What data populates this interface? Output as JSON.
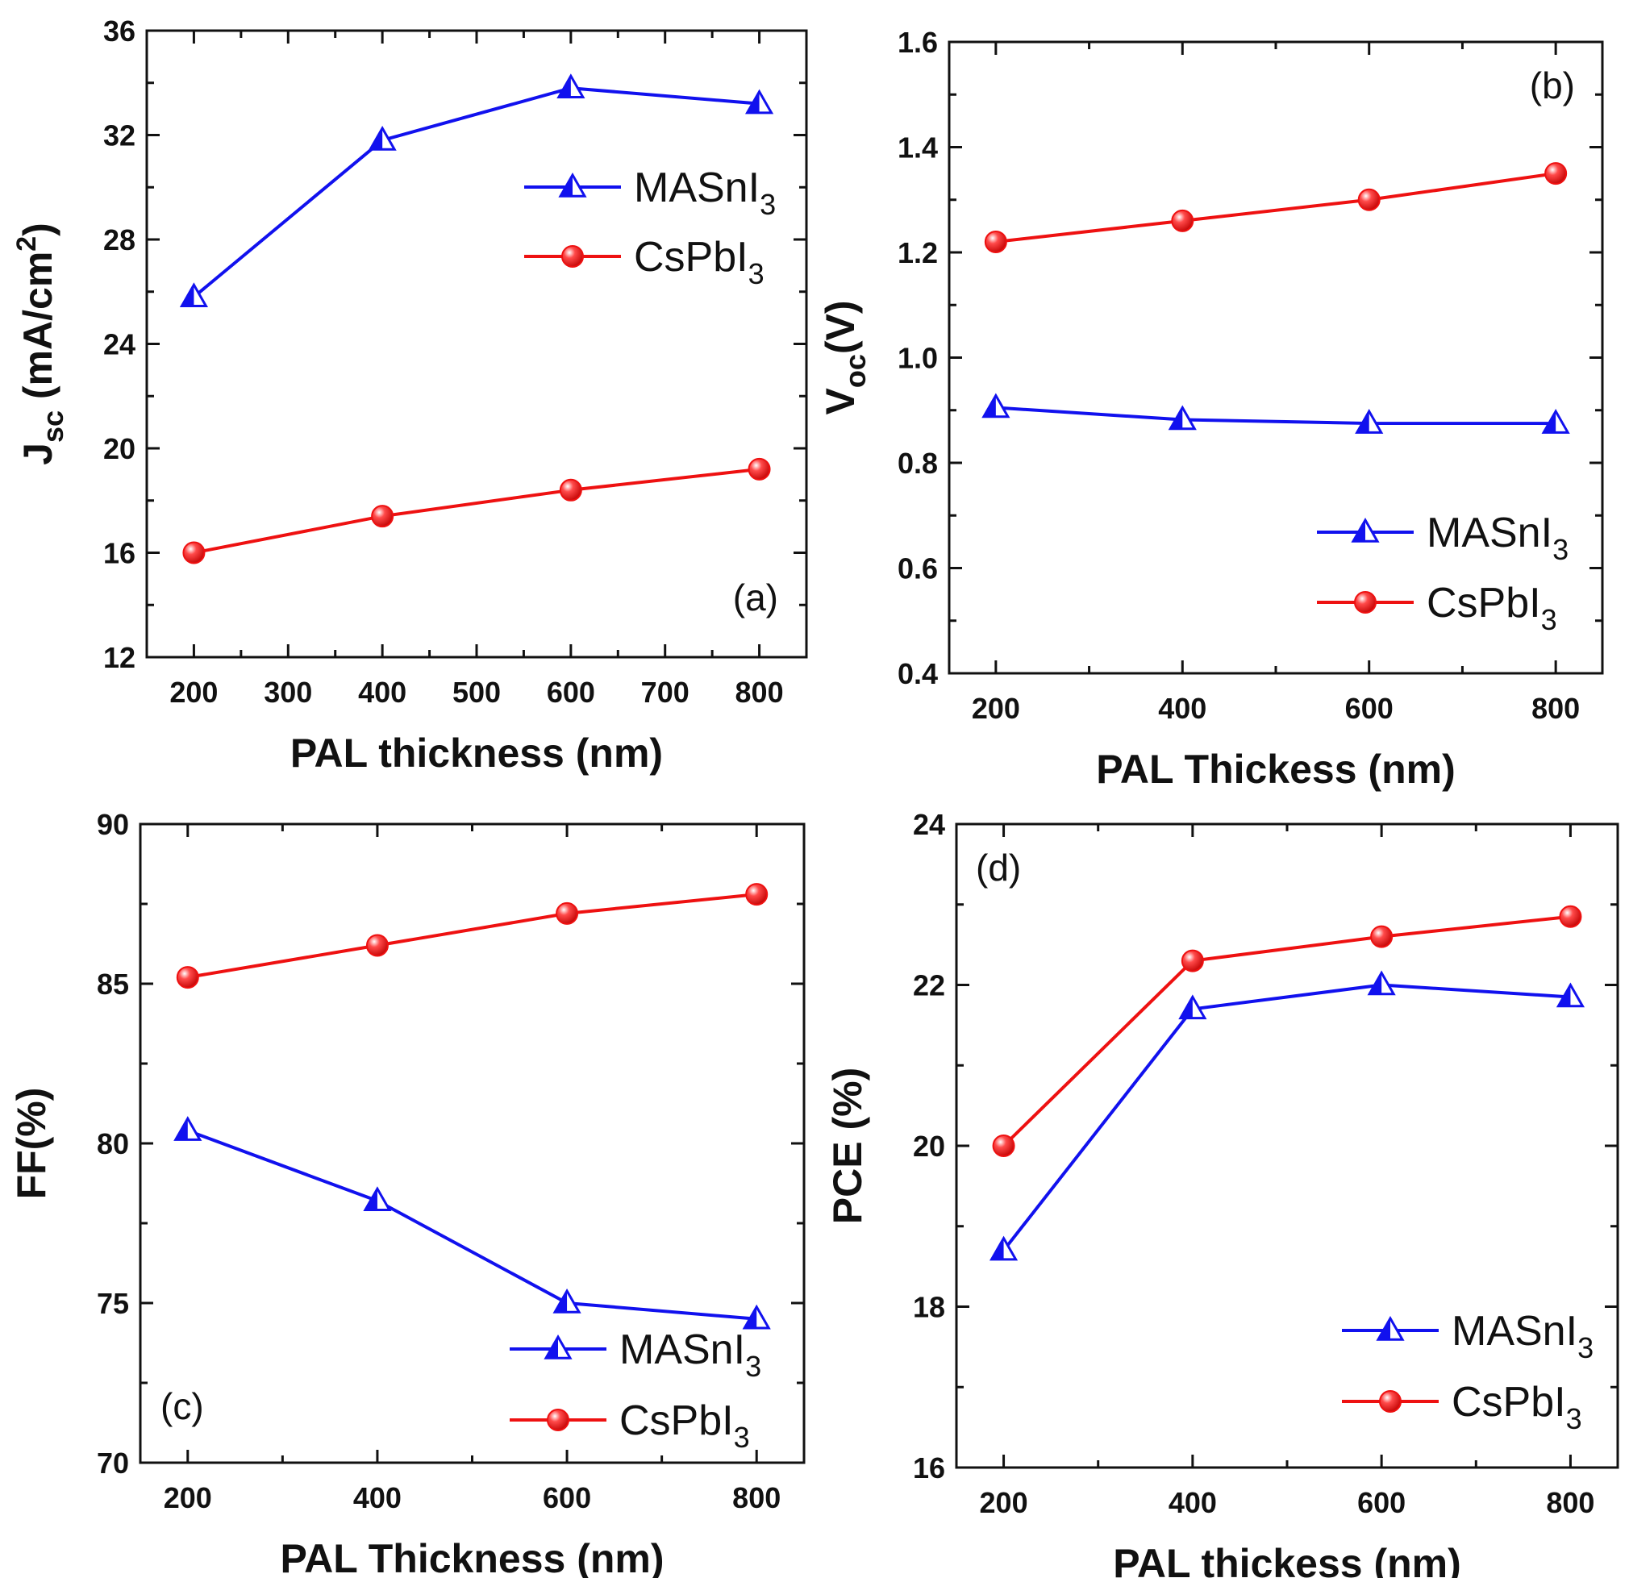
{
  "colors": {
    "MASnI3": "#1111ee",
    "CsPbI3": "#ee1111",
    "axis": "#111111"
  },
  "chart_data": [
    {
      "type": "line",
      "panel": "a",
      "panel_label": "(a)",
      "xlabel": "PAL thickness (nm)",
      "ylabel_main": "J",
      "ylabel_sub": "sc",
      "ylabel_rest": " (mA/cm",
      "ylabel_sup": "2",
      "ylabel_end": ")",
      "xlim": [
        150,
        850
      ],
      "ylim": [
        12,
        36
      ],
      "xticks": [
        200,
        300,
        400,
        500,
        600,
        700,
        800
      ],
      "yticks": [
        12,
        16,
        20,
        24,
        28,
        32,
        36
      ],
      "legend_position": "top-right",
      "x": [
        200,
        400,
        600,
        800
      ],
      "series": [
        {
          "name": "MASnI3",
          "label": "MASnI",
          "sub": "3",
          "marker": "triangle",
          "values": [
            25.8,
            31.8,
            33.8,
            33.2
          ]
        },
        {
          "name": "CsPbI3",
          "label": "CsPbI",
          "sub": "3",
          "marker": "sphere",
          "values": [
            16.0,
            17.4,
            18.4,
            19.2
          ]
        }
      ]
    },
    {
      "type": "line",
      "panel": "b",
      "panel_label": "(b)",
      "xlabel": "PAL Thickess (nm)",
      "ylabel_main": "V",
      "ylabel_sub": "oc",
      "ylabel_rest": "(V)",
      "xlim": [
        150,
        850
      ],
      "ylim": [
        0.4,
        1.6
      ],
      "xticks": [
        200,
        400,
        600,
        800
      ],
      "yticks": [
        "0.4",
        "0.6",
        "0.8",
        "1.0",
        "1.2",
        "1.4",
        "1.6"
      ],
      "legend_position": "bottom-right",
      "x": [
        200,
        400,
        600,
        800
      ],
      "series": [
        {
          "name": "MASnI3",
          "label": "MASnI",
          "sub": "3",
          "marker": "triangle",
          "values": [
            0.905,
            0.882,
            0.875,
            0.875
          ]
        },
        {
          "name": "CsPbI3",
          "label": "CsPbI",
          "sub": "3",
          "marker": "sphere",
          "values": [
            1.22,
            1.26,
            1.3,
            1.35
          ]
        }
      ]
    },
    {
      "type": "line",
      "panel": "c",
      "panel_label": "(c)",
      "xlabel": "PAL Thickness (nm)",
      "ylabel_main": "FF(%)",
      "xlim": [
        150,
        850
      ],
      "ylim": [
        70,
        90
      ],
      "xticks": [
        200,
        400,
        600,
        800
      ],
      "yticks": [
        70,
        75,
        80,
        85,
        90
      ],
      "legend_position": "bottom-right",
      "x": [
        200,
        400,
        600,
        800
      ],
      "series": [
        {
          "name": "MASnI3",
          "label": "MASnI",
          "sub": "3",
          "marker": "triangle",
          "values": [
            80.4,
            78.2,
            75.0,
            74.5
          ]
        },
        {
          "name": "CsPbI3",
          "label": "CsPbI",
          "sub": "3",
          "marker": "sphere",
          "values": [
            85.2,
            86.2,
            87.2,
            87.8
          ]
        }
      ]
    },
    {
      "type": "line",
      "panel": "d",
      "panel_label": "(d)",
      "xlabel": "PAL thickess (nm)",
      "ylabel_main": "PCE (%)",
      "xlim": [
        150,
        850
      ],
      "ylim": [
        16,
        24
      ],
      "xticks": [
        200,
        400,
        600,
        800
      ],
      "yticks": [
        16,
        18,
        20,
        22,
        24
      ],
      "legend_position": "bottom-right",
      "x": [
        200,
        400,
        600,
        800
      ],
      "series": [
        {
          "name": "MASnI3",
          "label": "MASnI",
          "sub": "3",
          "marker": "triangle",
          "values": [
            18.7,
            21.7,
            22.0,
            21.85
          ]
        },
        {
          "name": "CsPbI3",
          "label": "CsPbI",
          "sub": "3",
          "marker": "sphere",
          "values": [
            20.0,
            22.3,
            22.6,
            22.85
          ]
        }
      ]
    }
  ]
}
